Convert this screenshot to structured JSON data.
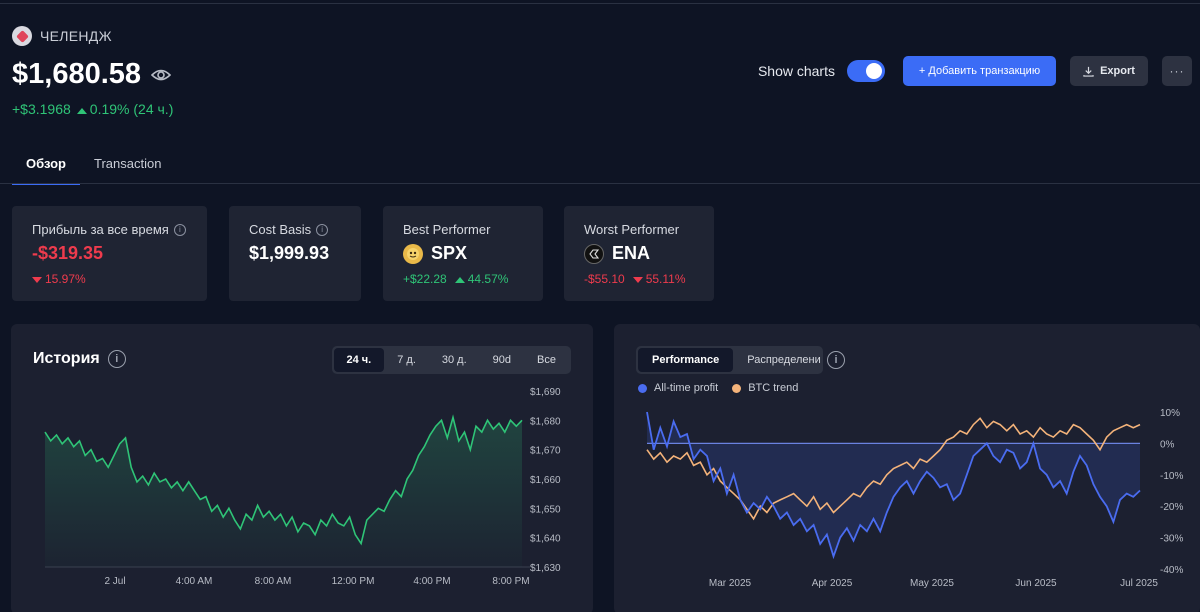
{
  "portfolio": {
    "name": "ЧЕЛЕНДЖ",
    "balance": "$1,680.58",
    "change_abs": "+$3.1968",
    "change_pct": "0.19% (24 ч.)"
  },
  "actions": {
    "show_charts_label": "Show charts",
    "show_charts_on": true,
    "add_label": "+ Добавить транзакцию",
    "export_label": "Export",
    "more_label": "···"
  },
  "tabs": [
    {
      "label": "Обзор",
      "active": true
    },
    {
      "label": "Transaction",
      "active": false
    }
  ],
  "stats": {
    "profit": {
      "label": "Прибыль за все время",
      "value": "-$319.35",
      "pct": "15.97%"
    },
    "cost": {
      "label": "Cost Basis",
      "value": "$1,999.93"
    },
    "best": {
      "label": "Best Performer",
      "coin": "SPX",
      "abs": "+$22.28",
      "pct": "44.57%"
    },
    "worst": {
      "label": "Worst Performer",
      "coin": "ENA",
      "abs": "-$55.10",
      "pct": "55.11%"
    }
  },
  "history": {
    "title": "История",
    "ranges": [
      "24 ч.",
      "7 д.",
      "30 д.",
      "90d",
      "Все"
    ],
    "active_range": "24 ч."
  },
  "performance": {
    "tabs": [
      "Performance",
      "Распределени"
    ],
    "legend": [
      "All-time profit",
      "BTC trend"
    ]
  },
  "colors": {
    "accent": "#3b6cf6",
    "positive": "#2fc477",
    "negative": "#ef3b4d",
    "btc": "#f4b37a",
    "profit_line": "#4a6cf0"
  },
  "chart_data": [
    {
      "type": "area",
      "title": "История",
      "x_ticks": [
        "2 Jul",
        "4:00 AM",
        "8:00 AM",
        "12:00 PM",
        "4:00 PM",
        "8:00 PM"
      ],
      "y_ticks": [
        "$1,690",
        "$1,680",
        "$1,670",
        "$1,660",
        "$1,650",
        "$1,640",
        "$1,630"
      ],
      "ylim": [
        1630,
        1690
      ],
      "series": [
        {
          "values": [
            1676,
            1673,
            1675,
            1672,
            1674,
            1671,
            1673,
            1668,
            1670,
            1666,
            1667,
            1664,
            1668,
            1672,
            1674,
            1664,
            1659,
            1661,
            1658,
            1662,
            1659,
            1660,
            1657,
            1659,
            1656,
            1659,
            1656,
            1653,
            1654,
            1649,
            1651,
            1647,
            1650,
            1646,
            1643,
            1648,
            1646,
            1651,
            1647,
            1649,
            1646,
            1648,
            1644,
            1647,
            1642,
            1645,
            1644,
            1641,
            1646,
            1644,
            1648,
            1645,
            1644,
            1647,
            1641,
            1638,
            1646,
            1648,
            1650,
            1649,
            1653,
            1656,
            1654,
            1660,
            1663,
            1668,
            1671,
            1675,
            1678,
            1680,
            1674,
            1681,
            1673,
            1676,
            1670,
            1678,
            1676,
            1680,
            1677,
            1679,
            1676,
            1680,
            1678,
            1680
          ]
        }
      ]
    },
    {
      "type": "line",
      "x_ticks": [
        "Mar 2025",
        "Apr 2025",
        "May 2025",
        "Jun 2025",
        "Jul 2025"
      ],
      "y_ticks": [
        "10%",
        "0%",
        "-10%",
        "-20%",
        "-30%",
        "-40%"
      ],
      "ylim": [
        -40,
        10
      ],
      "series": [
        {
          "name": "All-time profit",
          "values": [
            10,
            -2,
            5,
            -1,
            7,
            2,
            3,
            -5,
            -2,
            -4,
            -12,
            -8,
            -16,
            -10,
            -18,
            -22,
            -19,
            -21,
            -17,
            -20,
            -24,
            -22,
            -26,
            -24,
            -28,
            -26,
            -32,
            -29,
            -36,
            -30,
            -27,
            -31,
            -26,
            -28,
            -24,
            -28,
            -22,
            -17,
            -14,
            -12,
            -16,
            -12,
            -9,
            -11,
            -14,
            -13,
            -18,
            -16,
            -10,
            -4,
            -2,
            0,
            -4,
            -6,
            -2,
            -3,
            -8,
            -6,
            0,
            -8,
            -10,
            -14,
            -12,
            -16,
            -9,
            -4,
            -7,
            -13,
            -17,
            -20,
            -25,
            -18,
            -16,
            -17,
            -15
          ]
        },
        {
          "name": "BTC trend",
          "values": [
            -2,
            -5,
            -3,
            -6,
            -4,
            -5,
            -3,
            -7,
            -6,
            -10,
            -8,
            -12,
            -14,
            -16,
            -18,
            -21,
            -24,
            -20,
            -22,
            -19,
            -18,
            -17,
            -16,
            -18,
            -20,
            -17,
            -21,
            -19,
            -22,
            -20,
            -18,
            -16,
            -17,
            -14,
            -12,
            -13,
            -10,
            -8,
            -7,
            -6,
            -8,
            -5,
            -6,
            -4,
            -2,
            1,
            2,
            4,
            3,
            6,
            8,
            5,
            7,
            6,
            4,
            6,
            3,
            4,
            2,
            5,
            3,
            2,
            4,
            3,
            6,
            5,
            3,
            1,
            -2,
            2,
            4,
            5,
            6,
            5,
            6
          ]
        }
      ]
    }
  ]
}
